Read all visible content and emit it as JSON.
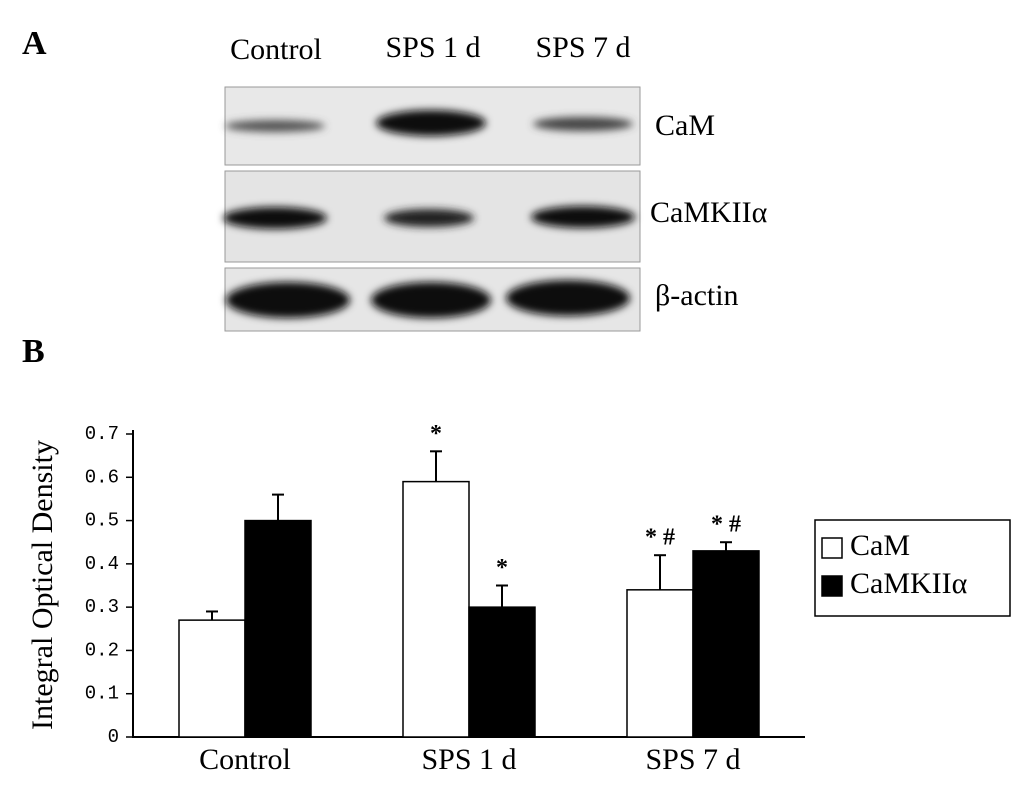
{
  "panel_labels": [
    "A",
    "B"
  ],
  "blot": {
    "lanes": [
      "Control",
      "SPS 1 d",
      "SPS 7 d"
    ],
    "bands": [
      "CaM",
      "CaMKIIα",
      "β-actin"
    ]
  },
  "chart_data": {
    "type": "bar",
    "y_label": "Integral Optical Density",
    "categories": [
      "Control",
      "SPS 1 d",
      "SPS 7 d"
    ],
    "series": [
      {
        "name": "CaM",
        "color": "#ffffff",
        "values": [
          0.27,
          0.59,
          0.34
        ],
        "errors": [
          0.02,
          0.07,
          0.08
        ],
        "annotations": [
          null,
          "*",
          "* #"
        ]
      },
      {
        "name": "CaMKIIα",
        "color": "#000000",
        "values": [
          0.5,
          0.3,
          0.43
        ],
        "errors": [
          0.06,
          0.05,
          0.02
        ],
        "annotations": [
          null,
          "*",
          "* #"
        ]
      }
    ],
    "ylim": [
      0,
      0.7
    ],
    "yticks": [
      0,
      0.1,
      0.2,
      0.3,
      0.4,
      0.5,
      0.6,
      0.7
    ]
  }
}
